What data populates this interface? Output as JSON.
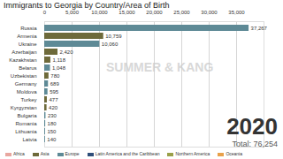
{
  "chart_data": {
    "type": "bar",
    "title": "Immigrants to Georgia by Country/Area of Birth",
    "orientation": "horizontal",
    "data_labels": true,
    "grid": true,
    "legend": "bottom",
    "categories": [
      "Russia",
      "Armenia",
      "Ukraine",
      "Azerbaijan",
      "Kazakhstan",
      "Belarus",
      "Uzbekistan",
      "Germany",
      "Moldova",
      "Turkey",
      "Kyrgyzstan",
      "Bulgaria",
      "Romania",
      "Lithuania",
      "Latvia"
    ],
    "xlim": [
      0,
      40000
    ],
    "xticks": [
      {
        "value": 0,
        "label": "0"
      },
      {
        "value": 5000,
        "label": "5,000"
      },
      {
        "value": 10000,
        "label": "10,000"
      },
      {
        "value": 15000,
        "label": "15,000"
      },
      {
        "value": 20000,
        "label": "20,000"
      },
      {
        "value": 25000,
        "label": "25,000"
      },
      {
        "value": 30000,
        "label": "30,000"
      },
      {
        "value": 35000,
        "label": "35,000"
      }
    ],
    "series": [
      {
        "name": "Africa",
        "color": "#e8a7a0",
        "values": [
          null,
          null,
          null,
          null,
          null,
          null,
          null,
          null,
          null,
          null,
          null,
          null,
          null,
          null,
          null
        ],
        "value_labels": [
          null,
          null,
          null,
          null,
          null,
          null,
          null,
          null,
          null,
          null,
          null,
          null,
          null,
          null,
          null
        ]
      },
      {
        "name": "Asia",
        "color": "#6e6a3a",
        "values": [
          null,
          10759,
          null,
          2420,
          1118,
          null,
          780,
          null,
          null,
          477,
          420,
          null,
          null,
          null,
          null
        ],
        "value_labels": [
          null,
          "10,759",
          null,
          "2,420",
          "1,118",
          null,
          "780",
          null,
          null,
          "477",
          "420",
          null,
          null,
          null,
          null
        ]
      },
      {
        "name": "Europe",
        "color": "#5e8a96",
        "values": [
          37267,
          null,
          10060,
          null,
          null,
          1048,
          null,
          689,
          595,
          null,
          null,
          230,
          180,
          150,
          140
        ],
        "value_labels": [
          "37,267",
          null,
          "10,060",
          null,
          null,
          "1,048",
          null,
          "689",
          "595",
          null,
          null,
          "230",
          "180",
          "150",
          "140"
        ]
      },
      {
        "name": "Latin America and the Caribbean",
        "color": "#2f4f7a",
        "values": [
          null,
          null,
          null,
          null,
          null,
          null,
          null,
          null,
          null,
          null,
          null,
          null,
          null,
          null,
          null
        ],
        "value_labels": [
          null,
          null,
          null,
          null,
          null,
          null,
          null,
          null,
          null,
          null,
          null,
          null,
          null,
          null,
          null
        ]
      },
      {
        "name": "Northern America",
        "color": "#9aa04a",
        "values": [
          null,
          null,
          null,
          null,
          null,
          null,
          null,
          null,
          null,
          null,
          null,
          null,
          null,
          null,
          null
        ],
        "value_labels": [
          null,
          null,
          null,
          null,
          null,
          null,
          null,
          null,
          null,
          null,
          null,
          null,
          null,
          null,
          null
        ]
      },
      {
        "name": "Oceania",
        "color": "#e8a14a",
        "values": [
          null,
          null,
          null,
          null,
          null,
          null,
          null,
          null,
          null,
          null,
          null,
          null,
          null,
          null,
          null
        ],
        "value_labels": [
          null,
          null,
          null,
          null,
          null,
          null,
          null,
          null,
          null,
          null,
          null,
          null,
          null,
          null,
          null
        ]
      }
    ],
    "annotations": [
      "2020",
      "Total: 76,254",
      "SUMMER & KANG"
    ]
  }
}
